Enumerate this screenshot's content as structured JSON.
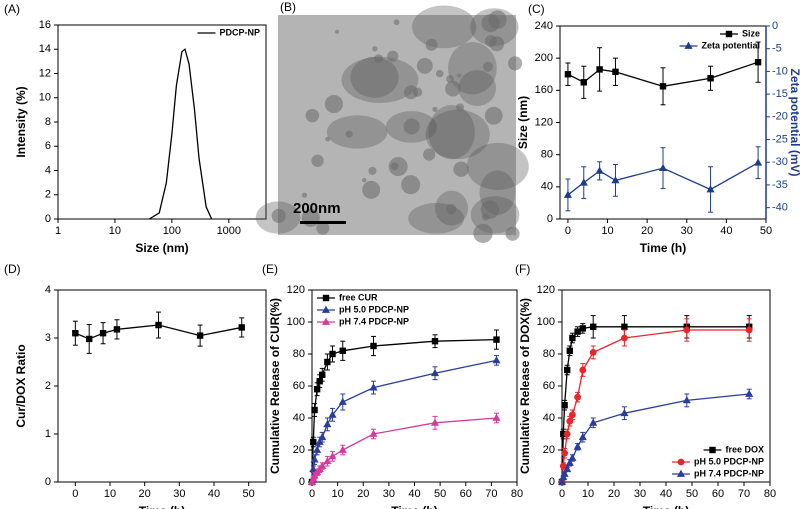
{
  "chart_data": [
    {
      "type": "line",
      "label": "(A)",
      "xlabel": "Size (nm)",
      "ylabel": "Intensity (%)",
      "xscale": "log",
      "xlim": [
        1,
        4500
      ],
      "xticks": [
        1,
        10,
        100,
        1000
      ],
      "ylim": [
        0,
        16
      ],
      "yticks": [
        0,
        2,
        4,
        6,
        8,
        10,
        12,
        14,
        16
      ],
      "legend": "upper right",
      "x": [
        40,
        60,
        80,
        100,
        120,
        150,
        170,
        200,
        250,
        300,
        400,
        500
      ],
      "series": [
        {
          "name": "PDCP-NP",
          "color": "#000000",
          "values": [
            0,
            0.5,
            3,
            7,
            11,
            13.8,
            14,
            12.8,
            9,
            5,
            1,
            0
          ]
        }
      ]
    },
    {
      "type": "image",
      "label": "(B)",
      "scale_bar": "200nm"
    },
    {
      "type": "line",
      "label": "(C)",
      "xlabel": "Time (h)",
      "ylabel": "Size (nm)",
      "y2label": "Zeta potential (mV)",
      "xlim": [
        -2,
        50
      ],
      "xticks": [
        0,
        10,
        20,
        30,
        40,
        50
      ],
      "ylim": [
        0,
        240
      ],
      "yticks": [
        0,
        40,
        80,
        120,
        160,
        200,
        240
      ],
      "y2lim": [
        -42.5,
        0
      ],
      "y2ticks": [
        0,
        -5,
        -10,
        -15,
        -20,
        -25,
        -30,
        -35,
        -40
      ],
      "legend": "upper right",
      "x": [
        0,
        4,
        8,
        12,
        24,
        36,
        48
      ],
      "series": [
        {
          "name": "Size",
          "color": "#000000",
          "marker": "square",
          "values": [
            180,
            170,
            186,
            183,
            165,
            175,
            195
          ],
          "errors": [
            14,
            20,
            27,
            17,
            23,
            15,
            25
          ]
        },
        {
          "name": "Zeta potential",
          "color": "#1f3c8c",
          "marker": "triangle",
          "axis": "y2",
          "values": [
            -37.2,
            -34.5,
            -31.9,
            -34,
            -31.3,
            -36,
            -30.1
          ],
          "errors": [
            3.5,
            3.5,
            2,
            3.5,
            4.5,
            5,
            3.5
          ]
        }
      ]
    },
    {
      "type": "line",
      "label": "(D)",
      "xlabel": "Time (h)",
      "ylabel": "Cur/DOX Ratio",
      "xlim": [
        -5,
        55
      ],
      "xticks": [
        0,
        10,
        20,
        30,
        40,
        50
      ],
      "ylim": [
        0,
        4
      ],
      "yticks": [
        0,
        1,
        2,
        3,
        4
      ],
      "x": [
        0,
        4,
        8,
        12,
        24,
        36,
        48
      ],
      "series": [
        {
          "color": "#000000",
          "marker": "square",
          "values": [
            3.1,
            2.98,
            3.1,
            3.18,
            3.27,
            3.05,
            3.22
          ],
          "errors": [
            0.25,
            0.3,
            0.22,
            0.2,
            0.27,
            0.22,
            0.2
          ]
        }
      ]
    },
    {
      "type": "line",
      "label": "(E)",
      "xlabel": "Time (h)",
      "ylabel": "Cumulative Release of CUR(%)",
      "xlim": [
        0,
        80
      ],
      "xticks": [
        0,
        10,
        20,
        30,
        40,
        50,
        60,
        70,
        80
      ],
      "ylim": [
        0,
        120
      ],
      "yticks": [
        0,
        20,
        40,
        60,
        80,
        100,
        120
      ],
      "legend": "upper left",
      "x": [
        0,
        0.5,
        1,
        2,
        3,
        4,
        6,
        8,
        12,
        24,
        48,
        72
      ],
      "series": [
        {
          "name": "free CUR",
          "color": "#000000",
          "marker": "square",
          "values": [
            0,
            25,
            45,
            58,
            63,
            67,
            75,
            80,
            82,
            85,
            88,
            89
          ],
          "errors": [
            0,
            3,
            4,
            4,
            4,
            4,
            5,
            5,
            6,
            6,
            4,
            6
          ]
        },
        {
          "name": "pH 5.0 PDCP-NP",
          "color": "#2a3d9c",
          "marker": "triangle",
          "values": [
            0,
            8,
            14,
            20,
            25,
            28,
            36,
            42,
            50,
            59,
            68,
            76
          ],
          "errors": [
            0,
            2,
            3,
            3,
            3,
            3,
            4,
            4,
            5,
            4,
            4,
            3
          ]
        },
        {
          "name": "pH 7.4 PDCP-NP",
          "color": "#d43c9c",
          "marker": "triangle",
          "values": [
            0,
            2,
            4,
            6,
            8,
            10,
            13,
            16,
            20,
            30,
            37,
            40
          ],
          "errors": [
            0,
            1,
            2,
            2,
            2,
            2,
            3,
            3,
            3,
            3,
            4,
            3
          ]
        }
      ]
    },
    {
      "type": "line",
      "label": "(F)",
      "xlabel": "Time (h)",
      "ylabel": "Cumulative Release of DOX(%)",
      "xlim": [
        0,
        80
      ],
      "xticks": [
        0,
        10,
        20,
        30,
        40,
        50,
        60,
        70,
        80
      ],
      "ylim": [
        0,
        120
      ],
      "yticks": [
        0,
        20,
        40,
        60,
        80,
        100,
        120
      ],
      "legend": "lower right",
      "x": [
        0,
        0.5,
        1,
        2,
        3,
        4,
        6,
        8,
        12,
        24,
        48,
        72
      ],
      "series": [
        {
          "name": "free DOX",
          "color": "#000000",
          "marker": "square",
          "values": [
            0,
            30,
            48,
            70,
            82,
            90,
            94,
            96,
            97,
            97,
            97,
            97
          ],
          "errors": [
            0,
            3,
            3,
            3,
            3,
            3,
            3,
            3,
            7,
            7,
            7,
            7
          ]
        },
        {
          "name": "pH 5.0 PDCP-NP",
          "color": "#e8262a",
          "marker": "circle",
          "values": [
            0,
            10,
            18,
            30,
            38,
            42,
            53,
            70,
            81,
            90,
            95,
            95
          ],
          "errors": [
            0,
            2,
            3,
            3,
            3,
            3,
            3,
            4,
            4,
            5,
            7,
            7
          ]
        },
        {
          "name": "pH 7.4 PDCP-NP",
          "color": "#2a3d9c",
          "marker": "triangle",
          "values": [
            0,
            3,
            5,
            8,
            12,
            15,
            22,
            28,
            37,
            43,
            51,
            55
          ],
          "errors": [
            0,
            1,
            1,
            1,
            2,
            2,
            2,
            3,
            3,
            4,
            4,
            3
          ]
        }
      ]
    }
  ]
}
